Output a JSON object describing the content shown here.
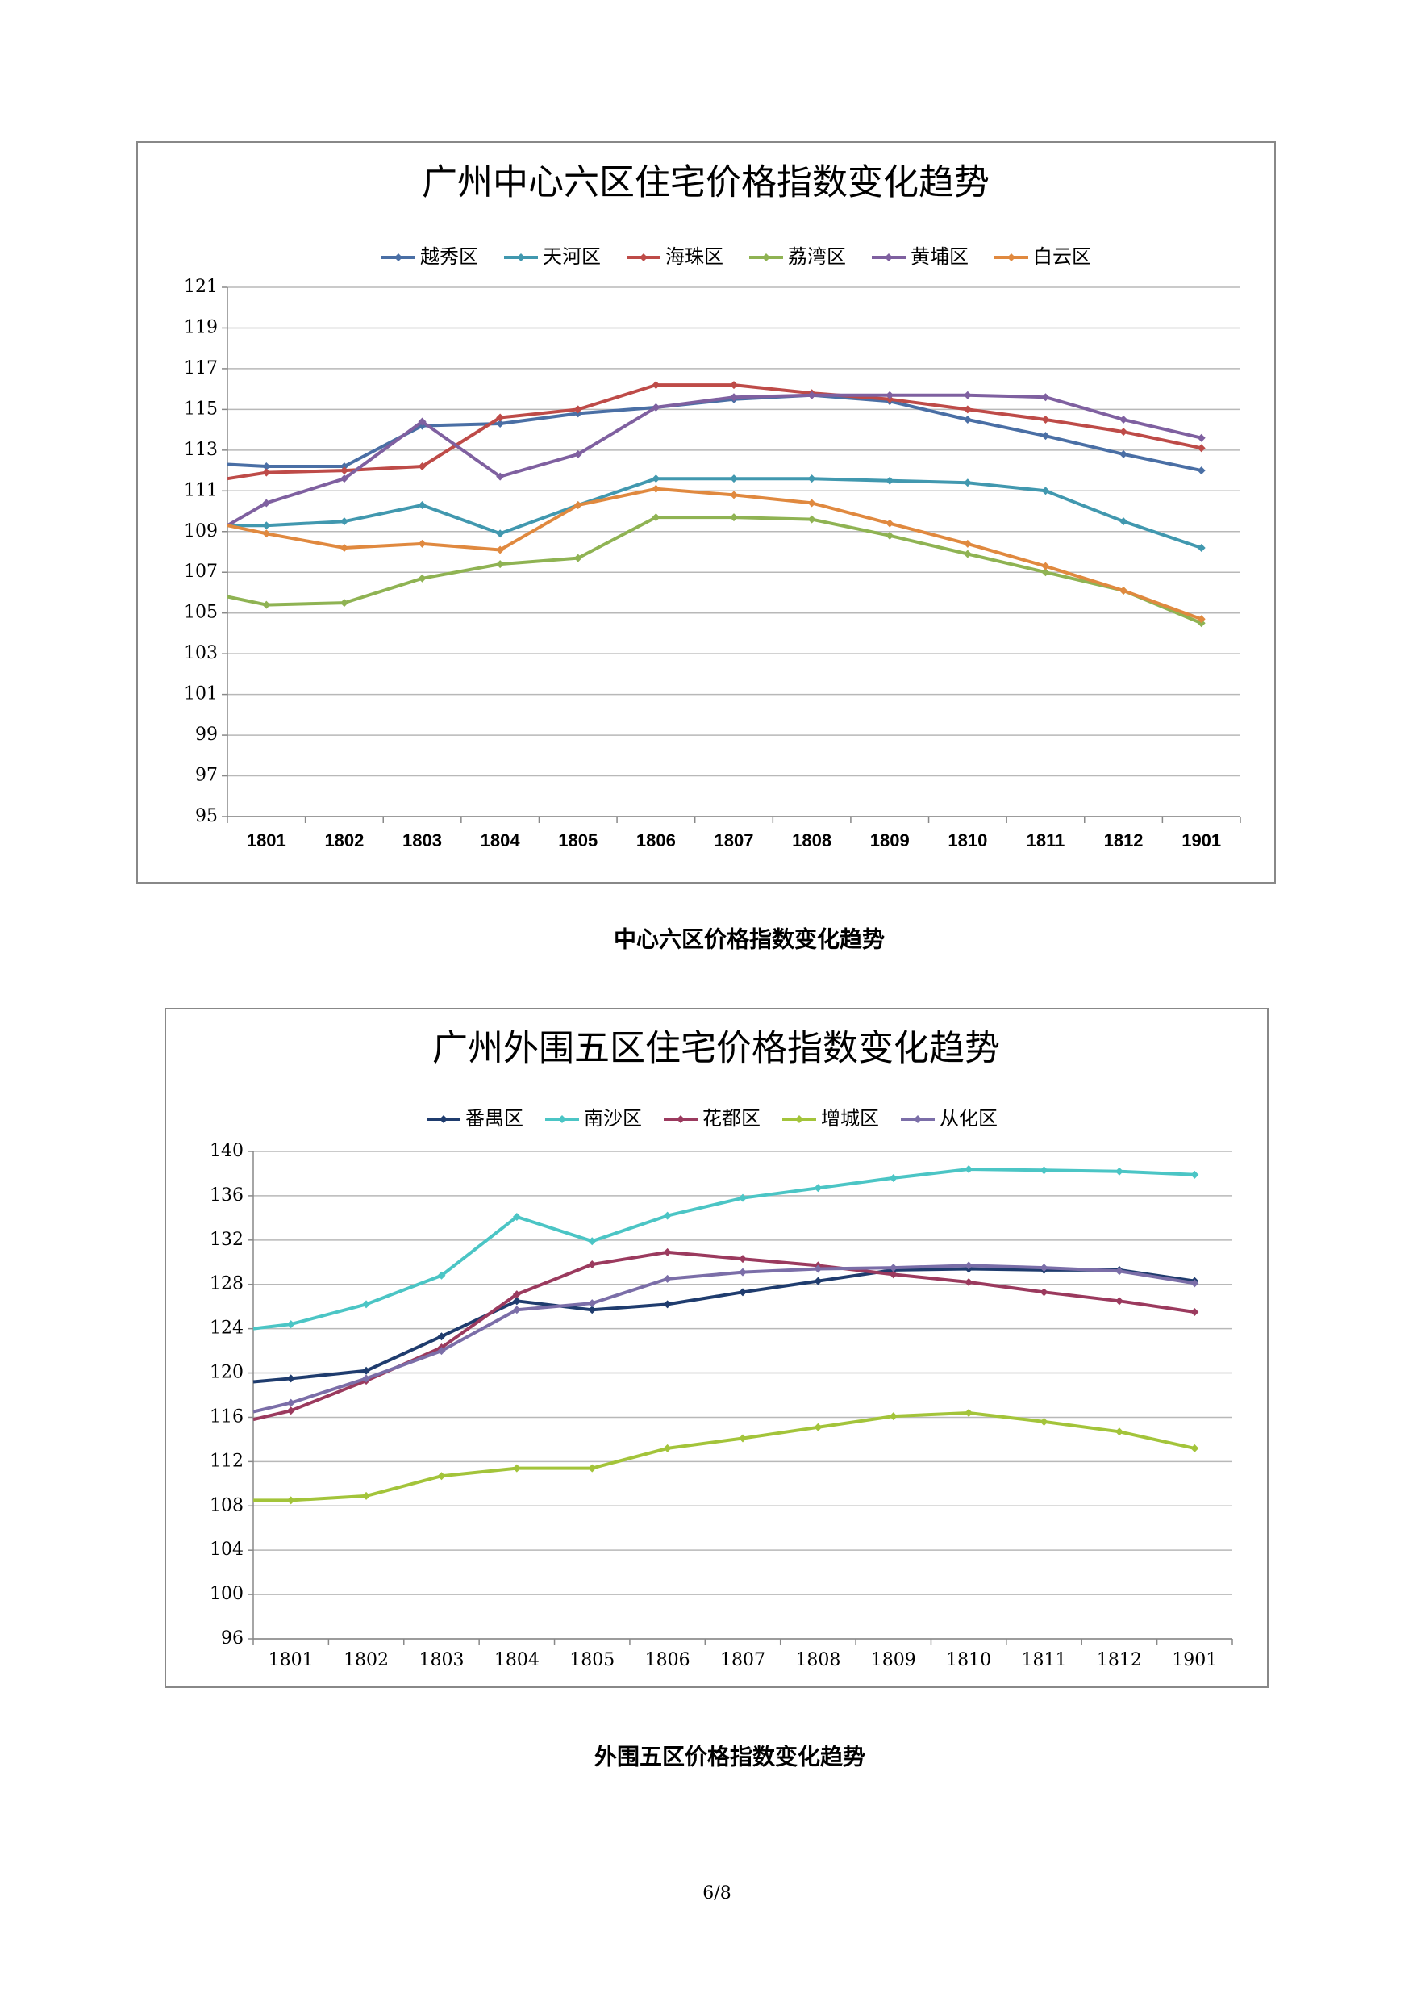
{
  "chart_data": [
    {
      "type": "line",
      "title": "广州中心六区住宅价格指数变化趋势",
      "categories": [
        null,
        "1801",
        "1802",
        "1803",
        "1804",
        "1805",
        "1806",
        "1807",
        "1808",
        "1809",
        "1810",
        "1811",
        "1812",
        "1901"
      ],
      "series": [
        {
          "name": "越秀区",
          "color": "#4a6fa5",
          "values": [
            112.3,
            112.2,
            112.2,
            114.2,
            114.3,
            114.8,
            115.1,
            115.5,
            115.7,
            115.4,
            114.5,
            113.7,
            112.8,
            112.0
          ]
        },
        {
          "name": "天河区",
          "color": "#4198af",
          "values": [
            109.3,
            109.3,
            109.5,
            110.3,
            108.9,
            110.3,
            111.6,
            111.6,
            111.6,
            111.5,
            111.4,
            111.0,
            109.5,
            108.2
          ]
        },
        {
          "name": "海珠区",
          "color": "#be4b48",
          "values": [
            111.6,
            111.9,
            112.0,
            112.2,
            114.6,
            115.0,
            116.2,
            116.2,
            115.8,
            115.5,
            115.0,
            114.5,
            113.9,
            113.1
          ]
        },
        {
          "name": "荔湾区",
          "color": "#8fb353",
          "values": [
            105.8,
            105.4,
            105.5,
            106.7,
            107.4,
            107.7,
            109.7,
            109.7,
            109.6,
            108.8,
            107.9,
            107.0,
            106.1,
            104.5
          ]
        },
        {
          "name": "黄埔区",
          "color": "#7f60a0",
          "values": [
            109.3,
            110.4,
            111.6,
            114.4,
            111.7,
            112.8,
            115.1,
            115.6,
            115.7,
            115.7,
            115.7,
            115.6,
            114.5,
            113.6
          ]
        },
        {
          "name": "白云区",
          "color": "#e0893f",
          "values": [
            109.3,
            108.9,
            108.2,
            108.4,
            108.1,
            110.3,
            111.1,
            110.8,
            110.4,
            109.4,
            108.4,
            107.3,
            106.1,
            104.7
          ]
        }
      ],
      "ylim": [
        95,
        121
      ],
      "yticks": [
        95,
        97,
        99,
        101,
        103,
        105,
        107,
        109,
        111,
        113,
        115,
        117,
        119,
        121
      ],
      "grid": true,
      "legend": "top"
    },
    {
      "type": "line",
      "title": "广州外围五区住宅价格指数变化趋势",
      "categories": [
        null,
        "1801",
        "1802",
        "1803",
        "1804",
        "1805",
        "1806",
        "1807",
        "1808",
        "1809",
        "1810",
        "1811",
        "1812",
        "1901"
      ],
      "series": [
        {
          "name": "番禺区",
          "color": "#1f3c6e",
          "values": [
            119.2,
            119.5,
            120.2,
            123.3,
            126.5,
            125.7,
            126.2,
            127.3,
            128.3,
            129.3,
            129.4,
            129.3,
            129.3,
            128.3
          ]
        },
        {
          "name": "南沙区",
          "color": "#4bc5c5",
          "values": [
            124.0,
            124.4,
            126.2,
            128.8,
            134.1,
            131.9,
            134.2,
            135.8,
            136.7,
            137.6,
            138.4,
            138.3,
            138.2,
            137.9
          ]
        },
        {
          "name": "花都区",
          "color": "#9b3a5e",
          "values": [
            115.8,
            116.6,
            119.3,
            122.3,
            127.1,
            129.8,
            130.9,
            130.3,
            129.7,
            128.9,
            128.2,
            127.3,
            126.5,
            125.5
          ]
        },
        {
          "name": "增城区",
          "color": "#a3c43a",
          "values": [
            108.5,
            108.5,
            108.9,
            110.7,
            111.4,
            111.4,
            113.2,
            114.1,
            115.1,
            116.1,
            116.4,
            115.6,
            114.7,
            113.2
          ]
        },
        {
          "name": "从化区",
          "color": "#7b6ea8",
          "values": [
            116.5,
            117.3,
            119.5,
            122.0,
            125.7,
            126.3,
            128.5,
            129.1,
            129.4,
            129.5,
            129.7,
            129.5,
            129.2,
            128.1
          ]
        }
      ],
      "ylim": [
        96,
        140
      ],
      "yticks": [
        96,
        100,
        104,
        108,
        112,
        116,
        120,
        124,
        128,
        132,
        136,
        140
      ],
      "grid": true,
      "legend": "top"
    }
  ],
  "captions": [
    "中心六区价格指数变化趋势",
    "外围五区价格指数变化趋势"
  ],
  "page_number": "6/8"
}
